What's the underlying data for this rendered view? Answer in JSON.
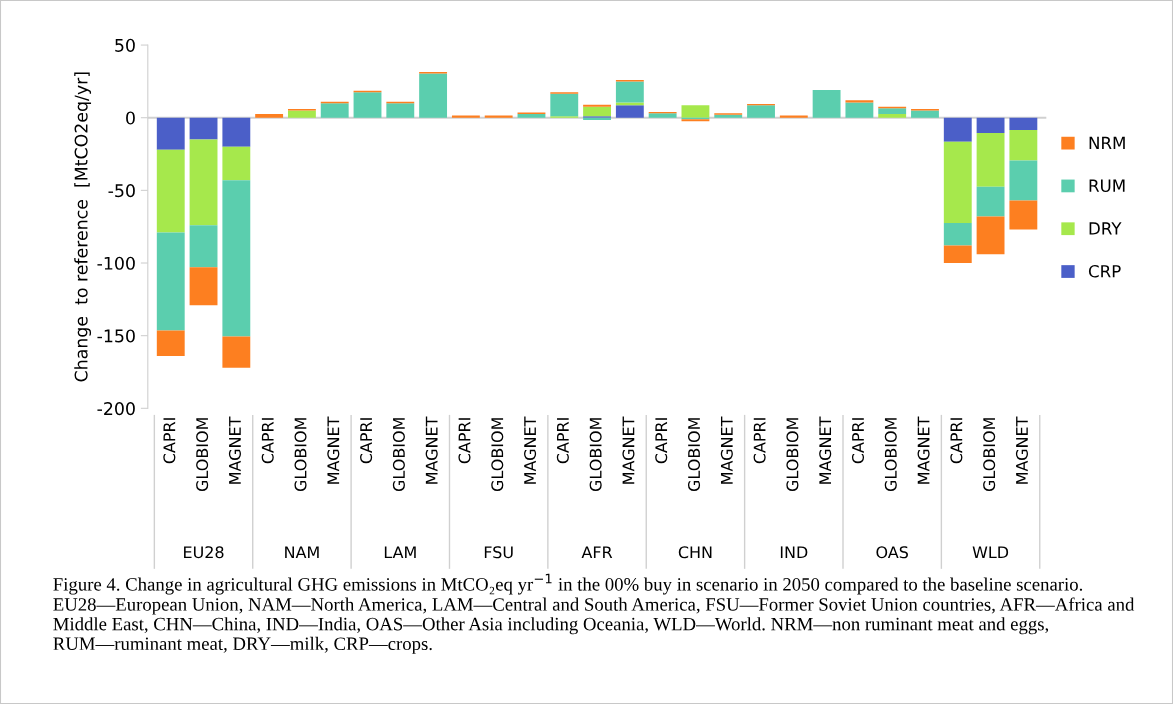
{
  "chart_data": {
    "type": "bar",
    "stacked": true,
    "ylabel": "Change  to reference  [MtCO2eq/yr]",
    "categories": [
      "CAPRI",
      "GLOBIOM",
      "MAGNET",
      "CAPRI",
      "GLOBIOM",
      "MAGNET",
      "CAPRI",
      "GLOBIOM",
      "MAGNET",
      "CAPRI",
      "GLOBIOM",
      "MAGNET",
      "CAPRI",
      "GLOBIOM",
      "MAGNET",
      "CAPRI",
      "GLOBIOM",
      "MAGNET",
      "CAPRI",
      "GLOBIOM",
      "MAGNET",
      "CAPRI",
      "GLOBIOM",
      "MAGNET",
      "CAPRI",
      "GLOBIOM",
      "MAGNET"
    ],
    "series": [
      {
        "name": "CRP",
        "color": "#4b5fc8",
        "values": [
          -22,
          -15,
          -20,
          0,
          0,
          0,
          0,
          0,
          0,
          0,
          0,
          0,
          0,
          1,
          8.5,
          0,
          0,
          0,
          0,
          0,
          0,
          0,
          0,
          0,
          -16.5,
          -10.5,
          -8.5
        ]
      },
      {
        "name": "DRY",
        "color": "#a6e84c",
        "values": [
          -57,
          -59,
          -23,
          0,
          5,
          0,
          0,
          0,
          0,
          0,
          0,
          0,
          1,
          6.5,
          2,
          0,
          8.5,
          0,
          0,
          0,
          0,
          0,
          2.5,
          0,
          -56,
          -37,
          -21
        ]
      },
      {
        "name": "RUM",
        "color": "#5bceae",
        "values": [
          -67.5,
          -29,
          -107.5,
          0,
          0,
          10,
          17.5,
          10,
          30.5,
          0,
          0,
          2.5,
          15.5,
          -1.5,
          14.5,
          3,
          -1,
          2,
          8.5,
          0,
          19,
          10.5,
          4,
          5,
          -15.5,
          -20.5,
          -27.5
        ]
      },
      {
        "name": "NRM",
        "color": "#fd7f20",
        "values": [
          -17.5,
          -26,
          -21.5,
          2.5,
          1,
          1,
          1,
          1,
          1,
          1.5,
          1.5,
          1,
          1,
          1.5,
          1,
          1,
          -1.5,
          1,
          1,
          1.5,
          0,
          1.5,
          1,
          1,
          -12,
          -26,
          -20
        ]
      }
    ],
    "ylim": [
      -200,
      50
    ],
    "yticks": [
      -200,
      -150,
      -100,
      -50,
      0,
      50
    ],
    "grid": false,
    "legend": "right",
    "ref_lines": [
      {
        "axis": "y",
        "value": 0,
        "color": "#d0d0d0"
      }
    ],
    "annotations": [
      "EU28",
      "NAM",
      "LAM",
      "FSU",
      "AFR",
      "CHN",
      "IND",
      "OAS",
      "WLD",
      "Figure 4. Change in agricultural GHG emissions in MtCO₂eq yr$^{−1}$ in the 00% buy in scenario in 2050 compared to the baseline scenario. EU28—European Union, NAM—North America, LAM—Central and South America, FSU—Former Soviet Union countries, AFR—Africa and Middle East, CHN—China, IND—India, OAS—Other Asia including Oceania, WLD—World. NRM—non ruminant meat and eggs, RUM—ruminant meat, DRY—milk, CRP—crops."
    ]
  }
}
